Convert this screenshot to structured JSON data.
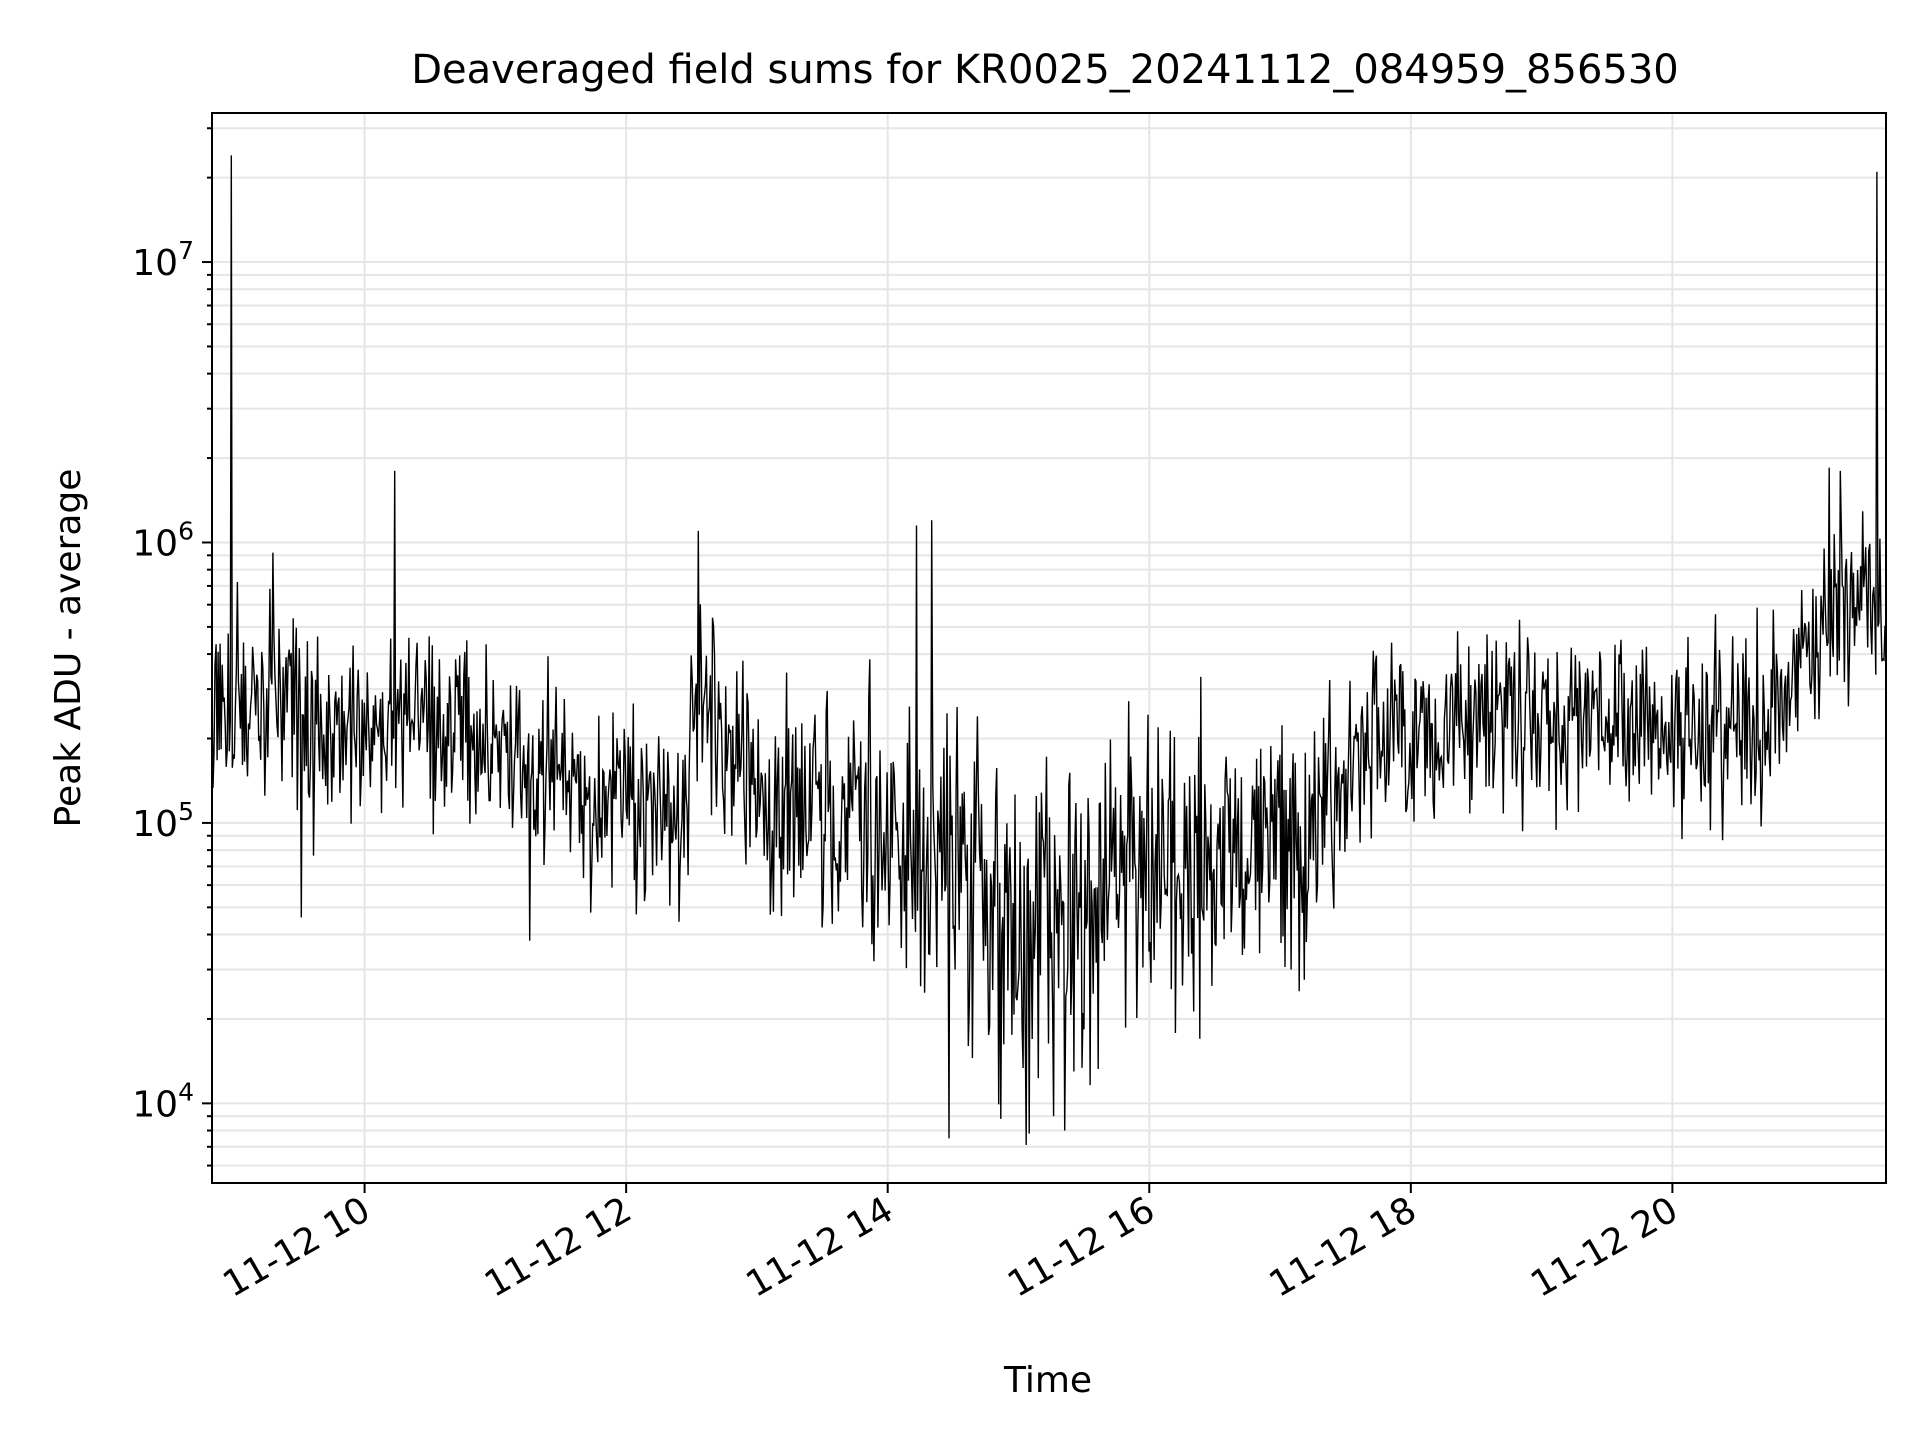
{
  "chart_data": {
    "type": "line",
    "title": "Deaveraged field sums for KR0025_20241112_084959_856530",
    "xlabel": "Time",
    "ylabel": "Peak ADU - average",
    "yscale": "log",
    "grid": true,
    "colors": {
      "series": "#000000",
      "grid": "#e6e6e6",
      "background": "#ffffff"
    },
    "xlim": [
      "2024-11-12 08:50",
      "2024-11-12 21:38"
    ],
    "ylim": [
      5200,
      34000000
    ],
    "x_ticks": [
      {
        "value": "2024-11-12 10:00",
        "label": "11-12 10"
      },
      {
        "value": "2024-11-12 12:00",
        "label": "11-12 12"
      },
      {
        "value": "2024-11-12 14:00",
        "label": "11-12 14"
      },
      {
        "value": "2024-11-12 16:00",
        "label": "11-12 16"
      },
      {
        "value": "2024-11-12 18:00",
        "label": "11-12 18"
      },
      {
        "value": "2024-11-12 20:00",
        "label": "11-12 20"
      }
    ],
    "y_ticks": [
      {
        "value": 10000,
        "mantissa": "10",
        "exponent": "4"
      },
      {
        "value": 100000,
        "mantissa": "10",
        "exponent": "5"
      },
      {
        "value": 1000000,
        "mantissa": "10",
        "exponent": "6"
      },
      {
        "value": 10000000,
        "mantissa": "10",
        "exponent": "7"
      }
    ],
    "trend": [
      [
        "2024-11-12 08:50",
        250000
      ],
      [
        "2024-11-12 09:20",
        300000
      ],
      [
        "2024-11-12 09:40",
        200000
      ],
      [
        "2024-11-12 10:30",
        220000
      ],
      [
        "2024-11-12 11:30",
        150000
      ],
      [
        "2024-11-12 12:25",
        100000
      ],
      [
        "2024-11-12 12:35",
        300000
      ],
      [
        "2024-11-12 13:00",
        110000
      ],
      [
        "2024-11-12 14:00",
        90000
      ],
      [
        "2024-11-12 15:00",
        40000
      ],
      [
        "2024-11-12 16:00",
        65000
      ],
      [
        "2024-11-12 17:20",
        100000
      ],
      [
        "2024-11-12 17:40",
        180000
      ],
      [
        "2024-11-12 18:30",
        230000
      ],
      [
        "2024-11-12 20:00",
        220000
      ],
      [
        "2024-11-12 20:45",
        220000
      ],
      [
        "2024-11-12 21:15",
        700000
      ],
      [
        "2024-11-12 21:38",
        550000
      ]
    ],
    "spikes": [
      [
        "2024-11-12 08:59",
        24000000
      ],
      [
        "2024-11-12 09:18",
        920000
      ],
      [
        "2024-11-12 10:14",
        1800000
      ],
      [
        "2024-11-12 12:33",
        1100000
      ],
      [
        "2024-11-12 14:13",
        1150000
      ],
      [
        "2024-11-12 14:20",
        1200000
      ],
      [
        "2024-11-12 14:28",
        7500
      ],
      [
        "2024-11-12 15:05",
        7800
      ],
      [
        "2024-11-12 15:21",
        8000
      ],
      [
        "2024-11-12 09:31",
        46000
      ],
      [
        "2024-11-12 11:16",
        38000
      ],
      [
        "2024-11-12 21:12",
        1850000
      ],
      [
        "2024-11-12 21:17",
        1800000
      ],
      [
        "2024-11-12 21:34",
        21000000
      ]
    ]
  }
}
